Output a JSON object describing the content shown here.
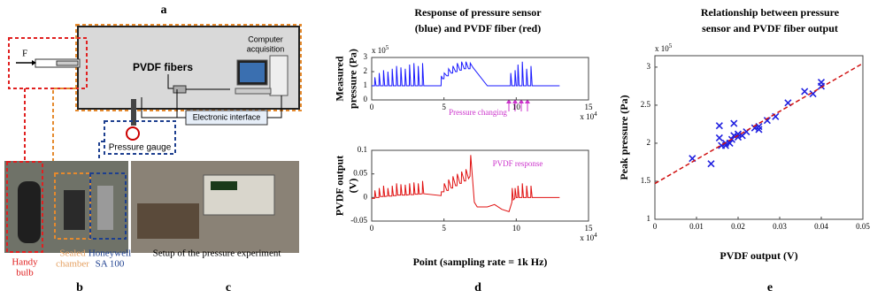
{
  "panel_labels": {
    "a": "a",
    "b": "b",
    "c": "c",
    "d": "d",
    "e": "e"
  },
  "diagram": {
    "force": "F",
    "fibers": "PVDF fibers",
    "computer": [
      "Computer",
      "acquisition"
    ],
    "interface": "Electronic interface",
    "gauge": "Pressure gauge"
  },
  "photos": {
    "bulb": [
      "Handy",
      "bulb"
    ],
    "chamber": [
      "Sealed",
      "chamber"
    ],
    "sensor": [
      "Honeywell",
      "SA 100"
    ],
    "setup": "Setup of the pressure experiment"
  },
  "chart_data": [
    {
      "type": "line",
      "title": [
        "Response of pressure sensor",
        "(blue) and PVDF fiber (red)"
      ],
      "y_label": [
        "Measured",
        "pressure (Pa)"
      ],
      "y_multiplier": {
        "base": "x 10",
        "exponent": "5"
      },
      "x_multiplier": {
        "base": "x 10",
        "exponent": "4"
      },
      "annotation": "Pressure changing",
      "xlim": [
        0,
        150000
      ],
      "xticks": [
        0,
        {
          "value": 50000,
          "label": "5"
        },
        {
          "value": 100000,
          "label": "10"
        },
        {
          "value": 150000,
          "label": "15"
        }
      ],
      "ylim": [
        0,
        300000
      ],
      "yticks": [
        0,
        {
          "value": 100000,
          "label": "1"
        },
        {
          "value": 200000,
          "label": "2"
        },
        {
          "value": 300000,
          "label": "3"
        }
      ],
      "grid": false,
      "series": [
        {
          "color": "#1a1aff",
          "x": [
            0,
            2000,
            2200,
            3000,
            5000,
            5200,
            6000,
            8000,
            8200,
            9000,
            11000,
            11200,
            12000,
            14000,
            14200,
            15000,
            17000,
            17200,
            18000,
            20000,
            20200,
            21000,
            23000,
            23200,
            24000,
            26000,
            26200,
            27000,
            29000,
            29200,
            30000,
            32000,
            32200,
            33000,
            35000,
            35200,
            36000,
            48000,
            48200,
            49000,
            50000,
            50200,
            52000,
            53000,
            53200,
            55000,
            56000,
            56200,
            58000,
            59000,
            59200,
            61000,
            62000,
            62200,
            64000,
            65000,
            65200,
            67000,
            68000,
            68200,
            70000,
            80000,
            96000,
            96200,
            97000,
            99000,
            99200,
            100000,
            101000,
            101200,
            102000,
            104000,
            104200,
            105000,
            107000,
            107200,
            108000,
            110000,
            110200,
            111000,
            130000
          ],
          "values": [
            100000,
            100000,
            160000,
            100000,
            100000,
            190000,
            100000,
            100000,
            210000,
            100000,
            100000,
            200000,
            100000,
            100000,
            220000,
            100000,
            100000,
            240000,
            100000,
            100000,
            230000,
            100000,
            100000,
            220000,
            100000,
            100000,
            250000,
            100000,
            100000,
            260000,
            100000,
            100000,
            240000,
            100000,
            100000,
            260000,
            100000,
            100000,
            170000,
            150000,
            150000,
            190000,
            170000,
            170000,
            220000,
            190000,
            190000,
            240000,
            200000,
            200000,
            260000,
            210000,
            210000,
            270000,
            220000,
            220000,
            270000,
            220000,
            220000,
            260000,
            230000,
            100000,
            100000,
            190000,
            100000,
            100000,
            210000,
            100000,
            100000,
            250000,
            100000,
            100000,
            270000,
            100000,
            100000,
            220000,
            100000,
            100000,
            240000,
            100000,
            100000
          ]
        }
      ]
    },
    {
      "type": "line",
      "x_label": "Point (sampling rate = 1k Hz)",
      "y_label": [
        "PVDF output",
        "(V)"
      ],
      "x_multiplier": {
        "base": "x 10",
        "exponent": "4"
      },
      "annotation": "PVDF response",
      "xlim": [
        0,
        150000
      ],
      "xticks": [
        0,
        {
          "value": 50000,
          "label": "5"
        },
        {
          "value": 100000,
          "label": "10"
        },
        {
          "value": 150000,
          "label": "15"
        }
      ],
      "ylim": [
        -0.05,
        0.1
      ],
      "yticks": [
        -0.05,
        0,
        0.05,
        0.1
      ],
      "grid": false,
      "series": [
        {
          "color": "#e01010",
          "x": [
            0,
            2000,
            2200,
            3000,
            5000,
            5200,
            6000,
            8000,
            8200,
            9000,
            11000,
            11200,
            12000,
            14000,
            14200,
            15000,
            17000,
            17200,
            18000,
            20000,
            20200,
            21000,
            23000,
            23200,
            24000,
            26000,
            26200,
            27000,
            29000,
            29200,
            30000,
            32000,
            32200,
            33000,
            35000,
            35200,
            36000,
            48000,
            48200,
            50000,
            50200,
            52000,
            53000,
            53200,
            55000,
            56000,
            56200,
            58000,
            59000,
            59200,
            61000,
            62000,
            62200,
            64000,
            65000,
            65200,
            67000,
            68000,
            68500,
            69500,
            71000,
            73000,
            80000,
            85000,
            90000,
            95000,
            97000,
            97200,
            98000,
            99000,
            99200,
            100000,
            101000,
            101200,
            102000,
            104000,
            104200,
            105000,
            107000,
            107200,
            108000,
            110000,
            110200,
            111000,
            130000
          ],
          "values": [
            -0.002,
            -0.002,
            0.015,
            0,
            0,
            0.02,
            0.002,
            0.002,
            0.025,
            0.002,
            0.003,
            0.02,
            0.003,
            0.003,
            0.025,
            0.004,
            0.004,
            0.03,
            0.005,
            0.005,
            0.028,
            0.005,
            0.005,
            0.027,
            0.005,
            0.006,
            0.03,
            0.006,
            0.006,
            0.032,
            0.007,
            0.007,
            0.03,
            0.007,
            0.008,
            0.035,
            0.008,
            0.004,
            0.012,
            0.012,
            0.03,
            0.015,
            0.015,
            0.038,
            0.02,
            0.02,
            0.045,
            0.025,
            0.025,
            0.05,
            0.03,
            0.03,
            0.055,
            0.035,
            0.035,
            0.06,
            0.04,
            0.045,
            0.09,
            0.05,
            -0.01,
            -0.02,
            -0.02,
            -0.015,
            -0.025,
            -0.03,
            -0.01,
            0.02,
            -0.005,
            -0.002,
            0.02,
            0,
            0,
            0.025,
            0,
            0,
            0.03,
            0,
            0,
            0.025,
            0,
            0,
            0.025,
            0,
            0
          ]
        }
      ]
    },
    {
      "type": "scatter",
      "title": [
        "Relationship between pressure",
        "sensor and PVDF fiber output"
      ],
      "x_label": "PVDF output (V)",
      "y_label": [
        "Peak pressure (Pa)"
      ],
      "y_multiplier": {
        "base": "x 10",
        "exponent": "5"
      },
      "xlim": [
        0,
        0.05
      ],
      "xticks": [
        0,
        0.01,
        0.02,
        0.03,
        0.04,
        0.05
      ],
      "ylim": [
        100000,
        315000
      ],
      "yticks": [
        {
          "value": 100000,
          "label": "1"
        },
        {
          "value": 150000,
          "label": "1.5"
        },
        {
          "value": 200000,
          "label": "2"
        },
        {
          "value": 250000,
          "label": "2.5"
        },
        {
          "value": 300000,
          "label": "3"
        }
      ],
      "grid": false,
      "series": [
        {
          "color": "#2020e0",
          "marker": "x",
          "x": [
            0.009,
            0.0135,
            0.0155,
            0.0155,
            0.016,
            0.017,
            0.017,
            0.018,
            0.0185,
            0.019,
            0.019,
            0.02,
            0.02,
            0.021,
            0.022,
            0.024,
            0.025,
            0.025,
            0.027,
            0.029,
            0.032,
            0.036,
            0.038,
            0.04,
            0.04
          ],
          "values": [
            180000,
            173000,
            223000,
            207000,
            197000,
            197000,
            200000,
            200000,
            205000,
            226000,
            210000,
            208000,
            212000,
            210000,
            215000,
            220000,
            218000,
            222000,
            230000,
            235000,
            253000,
            268000,
            265000,
            280000,
            275000
          ]
        },
        {
          "color": "#d01010",
          "style": "dashed",
          "x": [
            0,
            0.05
          ],
          "values": [
            147000,
            305000
          ]
        }
      ]
    }
  ]
}
